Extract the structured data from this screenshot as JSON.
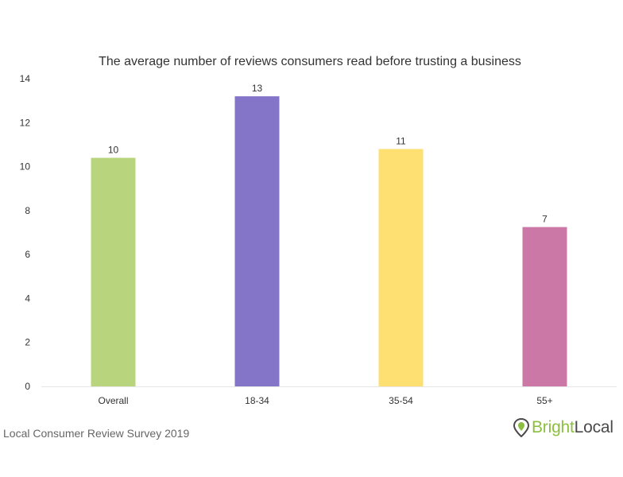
{
  "chart_data": {
    "type": "bar",
    "title": "The average number of reviews consumers read before trusting a business",
    "categories": [
      "Overall",
      "18-34",
      "35-54",
      "55+"
    ],
    "values": [
      10.4,
      13.2,
      10.8,
      7.25
    ],
    "data_labels": [
      "10",
      "13",
      "11",
      "7"
    ],
    "colors": [
      "#b8d47c",
      "#8475c8",
      "#fddf72",
      "#cc78a6"
    ],
    "ylim": [
      0,
      14
    ],
    "yticks": [
      0,
      2,
      4,
      6,
      8,
      10,
      12,
      14
    ],
    "grid": false,
    "legend": "none"
  },
  "footer": {
    "source": "Local Consumer Review Survey 2019",
    "logo_bright": "Bright",
    "logo_local": "Local"
  },
  "colors": {
    "axis": "#e6e6e6",
    "logo_green": "#8cbf3f"
  }
}
